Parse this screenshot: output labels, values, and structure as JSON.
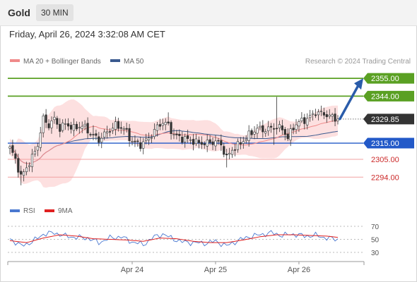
{
  "header": {
    "instrument": "Gold",
    "timeframe": "30 MIN"
  },
  "datetime": "Friday, April 26, 2024 3:32:08 AM CET",
  "credit": "Research © 2024 Trading Central",
  "colors": {
    "bollinger_fill": "#fde0e0",
    "ma20": "#f08a8a",
    "ma50": "#3a5a8f",
    "resistance": "#5aa023",
    "support": "#2259c8",
    "weak_support": "#e06060",
    "current": "#333333",
    "arrow": "#2a5caa",
    "rsi": "#4a78d0",
    "rsi_ma": "#e02020",
    "candle_up": "#ffffff",
    "candle_down": "#333333"
  },
  "chart_data": [
    {
      "type": "candlestick",
      "legend": [
        {
          "label": "MA 20 + Bollinger Bands",
          "color": "#f08a8a"
        },
        {
          "label": "MA 50",
          "color": "#3a5a8f"
        }
      ],
      "ylim": [
        2285,
        2362
      ],
      "x_ticks": [
        "Apr 24",
        "Apr 25",
        "Apr 26"
      ],
      "levels": [
        {
          "label": "2355.00",
          "value": 2355.0,
          "kind": "resistance"
        },
        {
          "label": "2344.00",
          "value": 2344.0,
          "kind": "resistance"
        },
        {
          "label": "2329.85",
          "value": 2329.85,
          "kind": "current"
        },
        {
          "label": "2315.00",
          "value": 2315.0,
          "kind": "support"
        },
        {
          "label": "2305.00",
          "value": 2305.0,
          "kind": "weak_support"
        },
        {
          "label": "2294.00",
          "value": 2294.0,
          "kind": "weak_support"
        }
      ],
      "anchors": [
        [
          0,
          2312
        ],
        [
          2,
          2305
        ],
        [
          4,
          2294
        ],
        [
          6,
          2300
        ],
        [
          8,
          2306
        ],
        [
          10,
          2314
        ],
        [
          12,
          2330
        ],
        [
          14,
          2326
        ],
        [
          16,
          2330
        ],
        [
          18,
          2324
        ],
        [
          20,
          2327
        ],
        [
          23,
          2324
        ],
        [
          26,
          2326
        ],
        [
          29,
          2321
        ],
        [
          32,
          2317
        ],
        [
          35,
          2322
        ],
        [
          38,
          2326
        ],
        [
          41,
          2324
        ],
        [
          44,
          2316
        ],
        [
          47,
          2314
        ],
        [
          50,
          2318
        ],
        [
          53,
          2325
        ],
        [
          55,
          2328
        ],
        [
          57,
          2326
        ],
        [
          59,
          2320
        ],
        [
          62,
          2318
        ],
        [
          65,
          2317
        ],
        [
          68,
          2315
        ],
        [
          71,
          2315
        ],
        [
          74,
          2316
        ],
        [
          76,
          2314
        ],
        [
          78,
          2306
        ],
        [
          80,
          2311
        ],
        [
          83,
          2315
        ],
        [
          86,
          2320
        ],
        [
          89,
          2324
        ],
        [
          92,
          2323
        ],
        [
          95,
          2325
        ],
        [
          98,
          2324
        ],
        [
          100,
          2318
        ],
        [
          102,
          2325
        ],
        [
          104,
          2328
        ],
        [
          107,
          2330
        ],
        [
          110,
          2334
        ],
        [
          113,
          2333
        ],
        [
          116,
          2331
        ],
        [
          118,
          2329.85
        ]
      ],
      "arrow": {
        "from": 2330,
        "to": 2355.0
      }
    },
    {
      "type": "line",
      "series": [
        {
          "name": "RSI",
          "color": "#4a78d0"
        },
        {
          "name": "9MA",
          "color": "#e02020"
        }
      ],
      "y_ticks": [
        70,
        50,
        30
      ],
      "ylim": [
        25,
        75
      ],
      "rsi_anchors": [
        [
          0,
          51
        ],
        [
          4,
          40
        ],
        [
          8,
          46
        ],
        [
          12,
          58
        ],
        [
          16,
          60
        ],
        [
          20,
          55
        ],
        [
          24,
          53
        ],
        [
          28,
          52
        ],
        [
          32,
          45
        ],
        [
          36,
          52
        ],
        [
          40,
          54
        ],
        [
          44,
          46
        ],
        [
          48,
          42
        ],
        [
          52,
          54
        ],
        [
          55,
          58
        ],
        [
          58,
          52
        ],
        [
          62,
          46
        ],
        [
          66,
          45
        ],
        [
          70,
          44
        ],
        [
          74,
          47
        ],
        [
          78,
          40
        ],
        [
          82,
          48
        ],
        [
          86,
          54
        ],
        [
          90,
          57
        ],
        [
          94,
          60
        ],
        [
          98,
          56
        ],
        [
          102,
          58
        ],
        [
          106,
          55
        ],
        [
          110,
          56
        ],
        [
          114,
          52
        ],
        [
          118,
          50
        ]
      ],
      "ma_anchors": [
        [
          0,
          48
        ],
        [
          6,
          45
        ],
        [
          12,
          52
        ],
        [
          18,
          57
        ],
        [
          24,
          55
        ],
        [
          30,
          51
        ],
        [
          36,
          50
        ],
        [
          42,
          49
        ],
        [
          48,
          47
        ],
        [
          54,
          52
        ],
        [
          60,
          51
        ],
        [
          66,
          47
        ],
        [
          72,
          45
        ],
        [
          78,
          45
        ],
        [
          84,
          49
        ],
        [
          90,
          54
        ],
        [
          96,
          57
        ],
        [
          102,
          57
        ],
        [
          108,
          56
        ],
        [
          114,
          55
        ],
        [
          118,
          53
        ]
      ]
    }
  ]
}
